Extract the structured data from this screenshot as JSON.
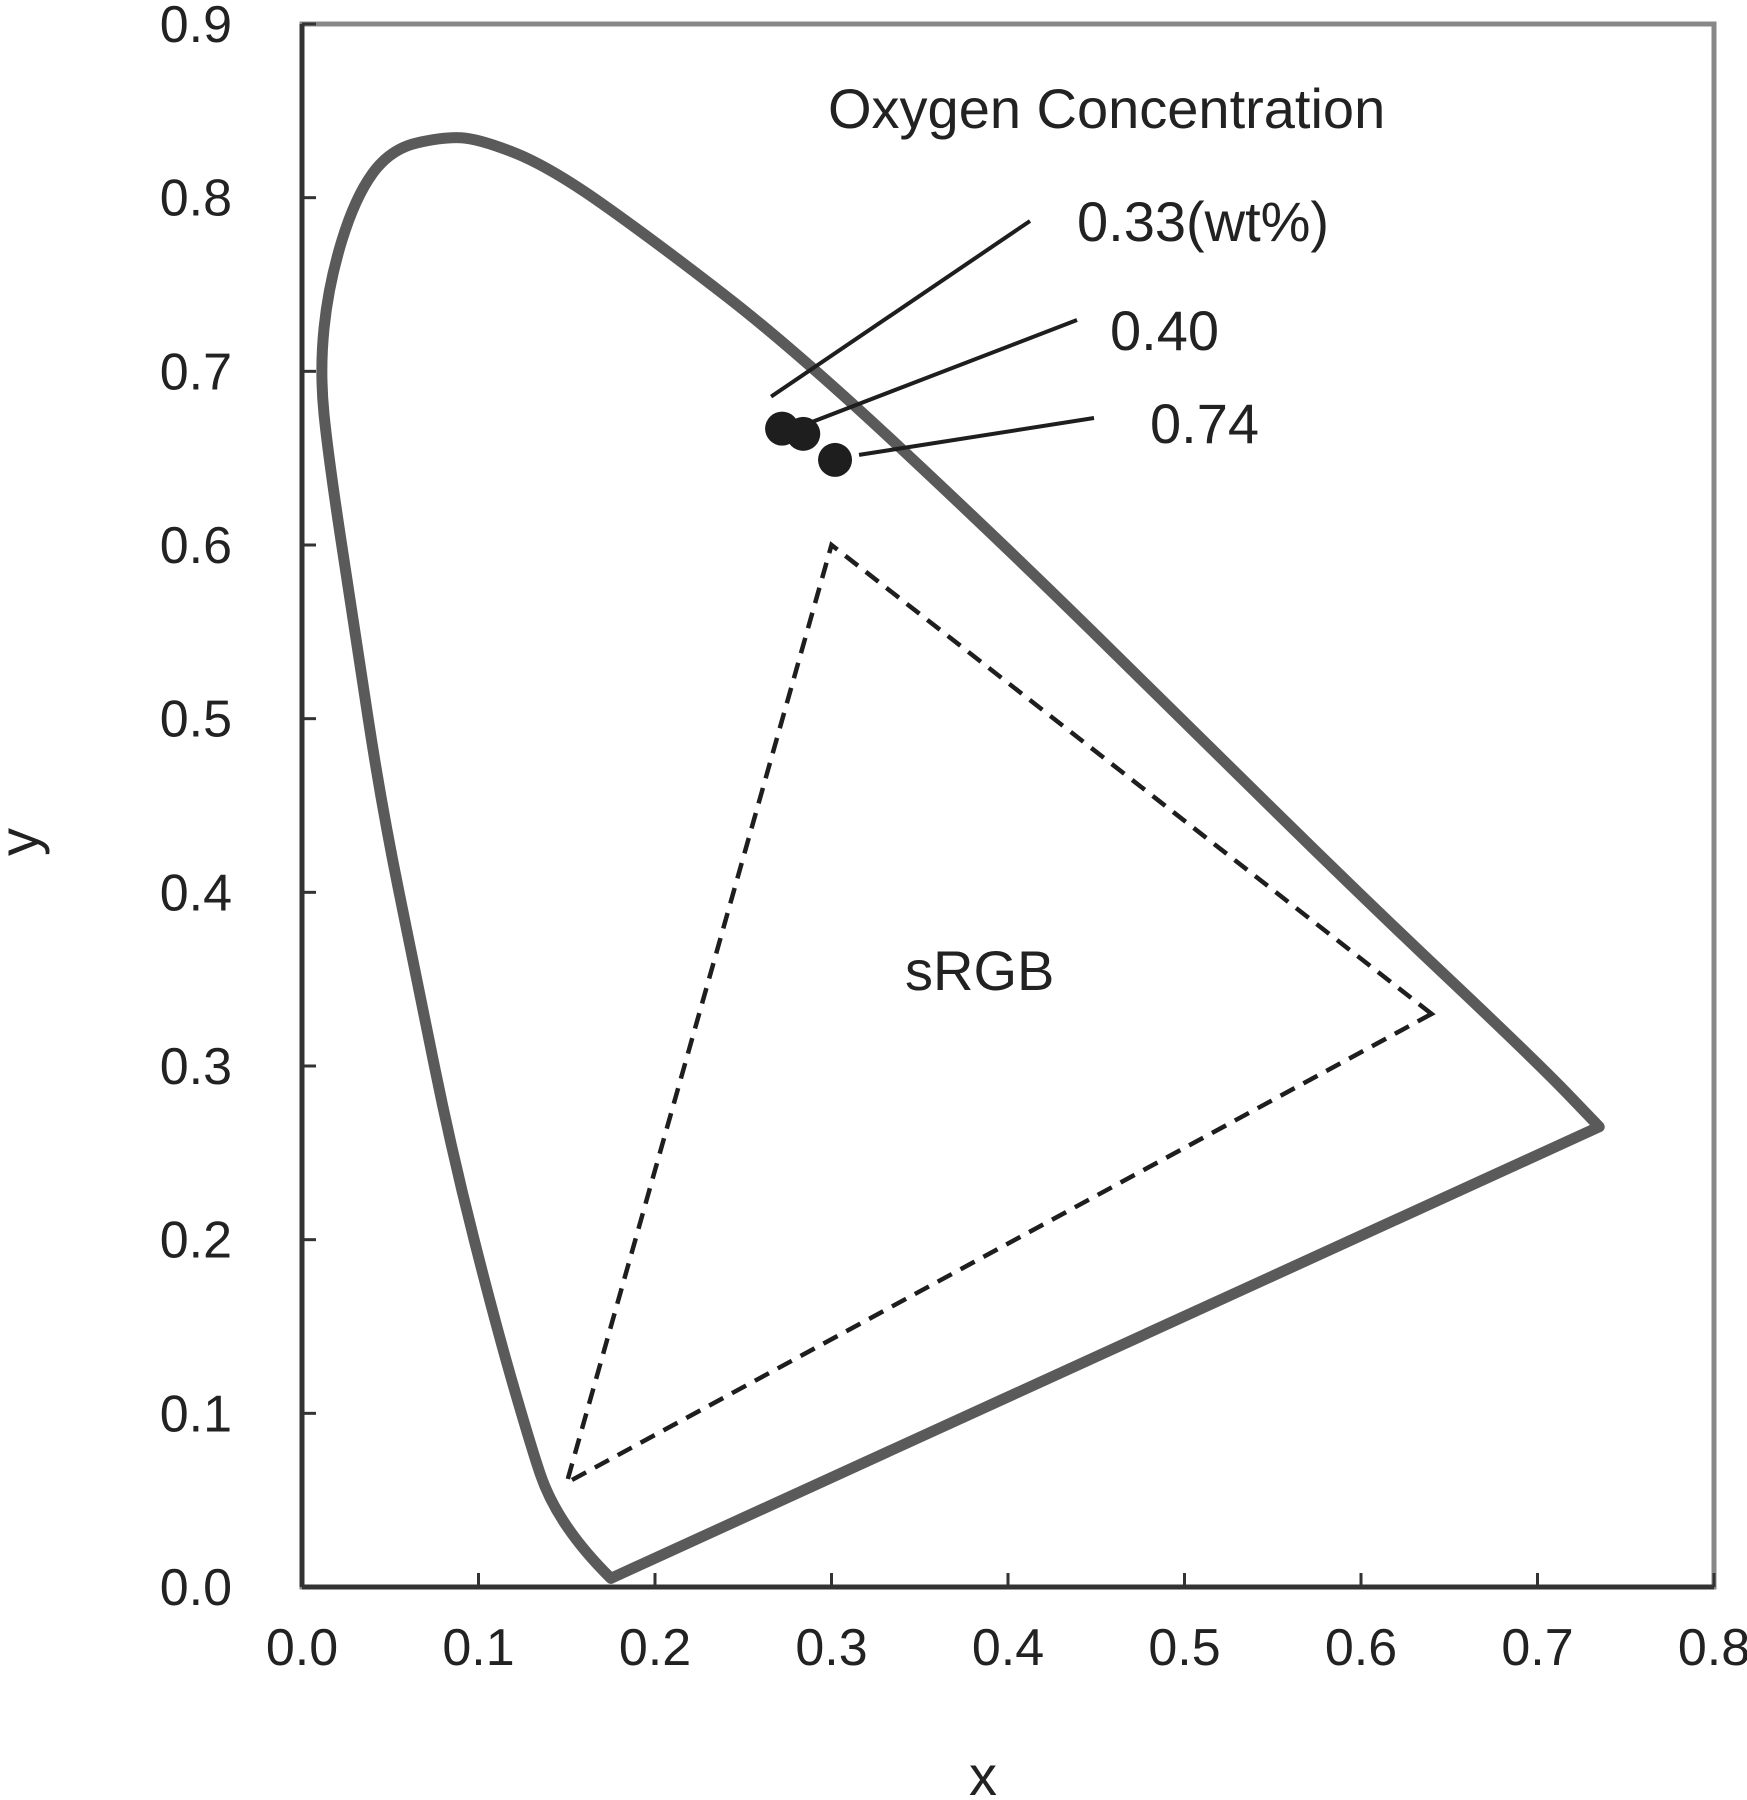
{
  "chart_data": {
    "type": "scatter",
    "xlabel": "x",
    "ylabel": "y",
    "xlim": [
      0.0,
      0.8
    ],
    "ylim": [
      0.0,
      0.9
    ],
    "x_ticks": [
      "0.0",
      "0.1",
      "0.2",
      "0.3",
      "0.4",
      "0.5",
      "0.6",
      "0.7",
      "0.8"
    ],
    "y_ticks": [
      "0.0",
      "0.1",
      "0.2",
      "0.3",
      "0.4",
      "0.5",
      "0.6",
      "0.7",
      "0.8",
      "0.9"
    ],
    "grid": false,
    "legend": "none",
    "series": [
      {
        "points": [
          {
            "x": 0.272,
            "y": 0.667,
            "label": "0.33(wt%)"
          },
          {
            "x": 0.284,
            "y": 0.664,
            "label": "0.40"
          },
          {
            "x": 0.302,
            "y": 0.649,
            "label": "0.74"
          }
        ]
      }
    ],
    "annotations": {
      "group_title": "Oxygen Concentration",
      "region_label": "sRGB"
    },
    "spectral_locus": [
      [
        0.175,
        0.005
      ],
      [
        0.16,
        0.02
      ],
      [
        0.14,
        0.05
      ],
      [
        0.13,
        0.08
      ],
      [
        0.11,
        0.15
      ],
      [
        0.085,
        0.25
      ],
      [
        0.065,
        0.35
      ],
      [
        0.045,
        0.45
      ],
      [
        0.03,
        0.55
      ],
      [
        0.015,
        0.65
      ],
      [
        0.01,
        0.7
      ],
      [
        0.015,
        0.75
      ],
      [
        0.03,
        0.8
      ],
      [
        0.05,
        0.828
      ],
      [
        0.08,
        0.835
      ],
      [
        0.1,
        0.834
      ],
      [
        0.14,
        0.818
      ],
      [
        0.2,
        0.775
      ],
      [
        0.28,
        0.712
      ],
      [
        0.4,
        0.598
      ],
      [
        0.5,
        0.498
      ],
      [
        0.6,
        0.398
      ],
      [
        0.7,
        0.302
      ],
      [
        0.735,
        0.265
      ]
    ],
    "srgb_triangle": [
      [
        0.64,
        0.33
      ],
      [
        0.3,
        0.6
      ],
      [
        0.15,
        0.06
      ]
    ],
    "colors": {
      "locus": "#5a5a5a",
      "frame": "#888888",
      "points": "#1e1e1e",
      "triangle": "#1e1e1e"
    }
  }
}
